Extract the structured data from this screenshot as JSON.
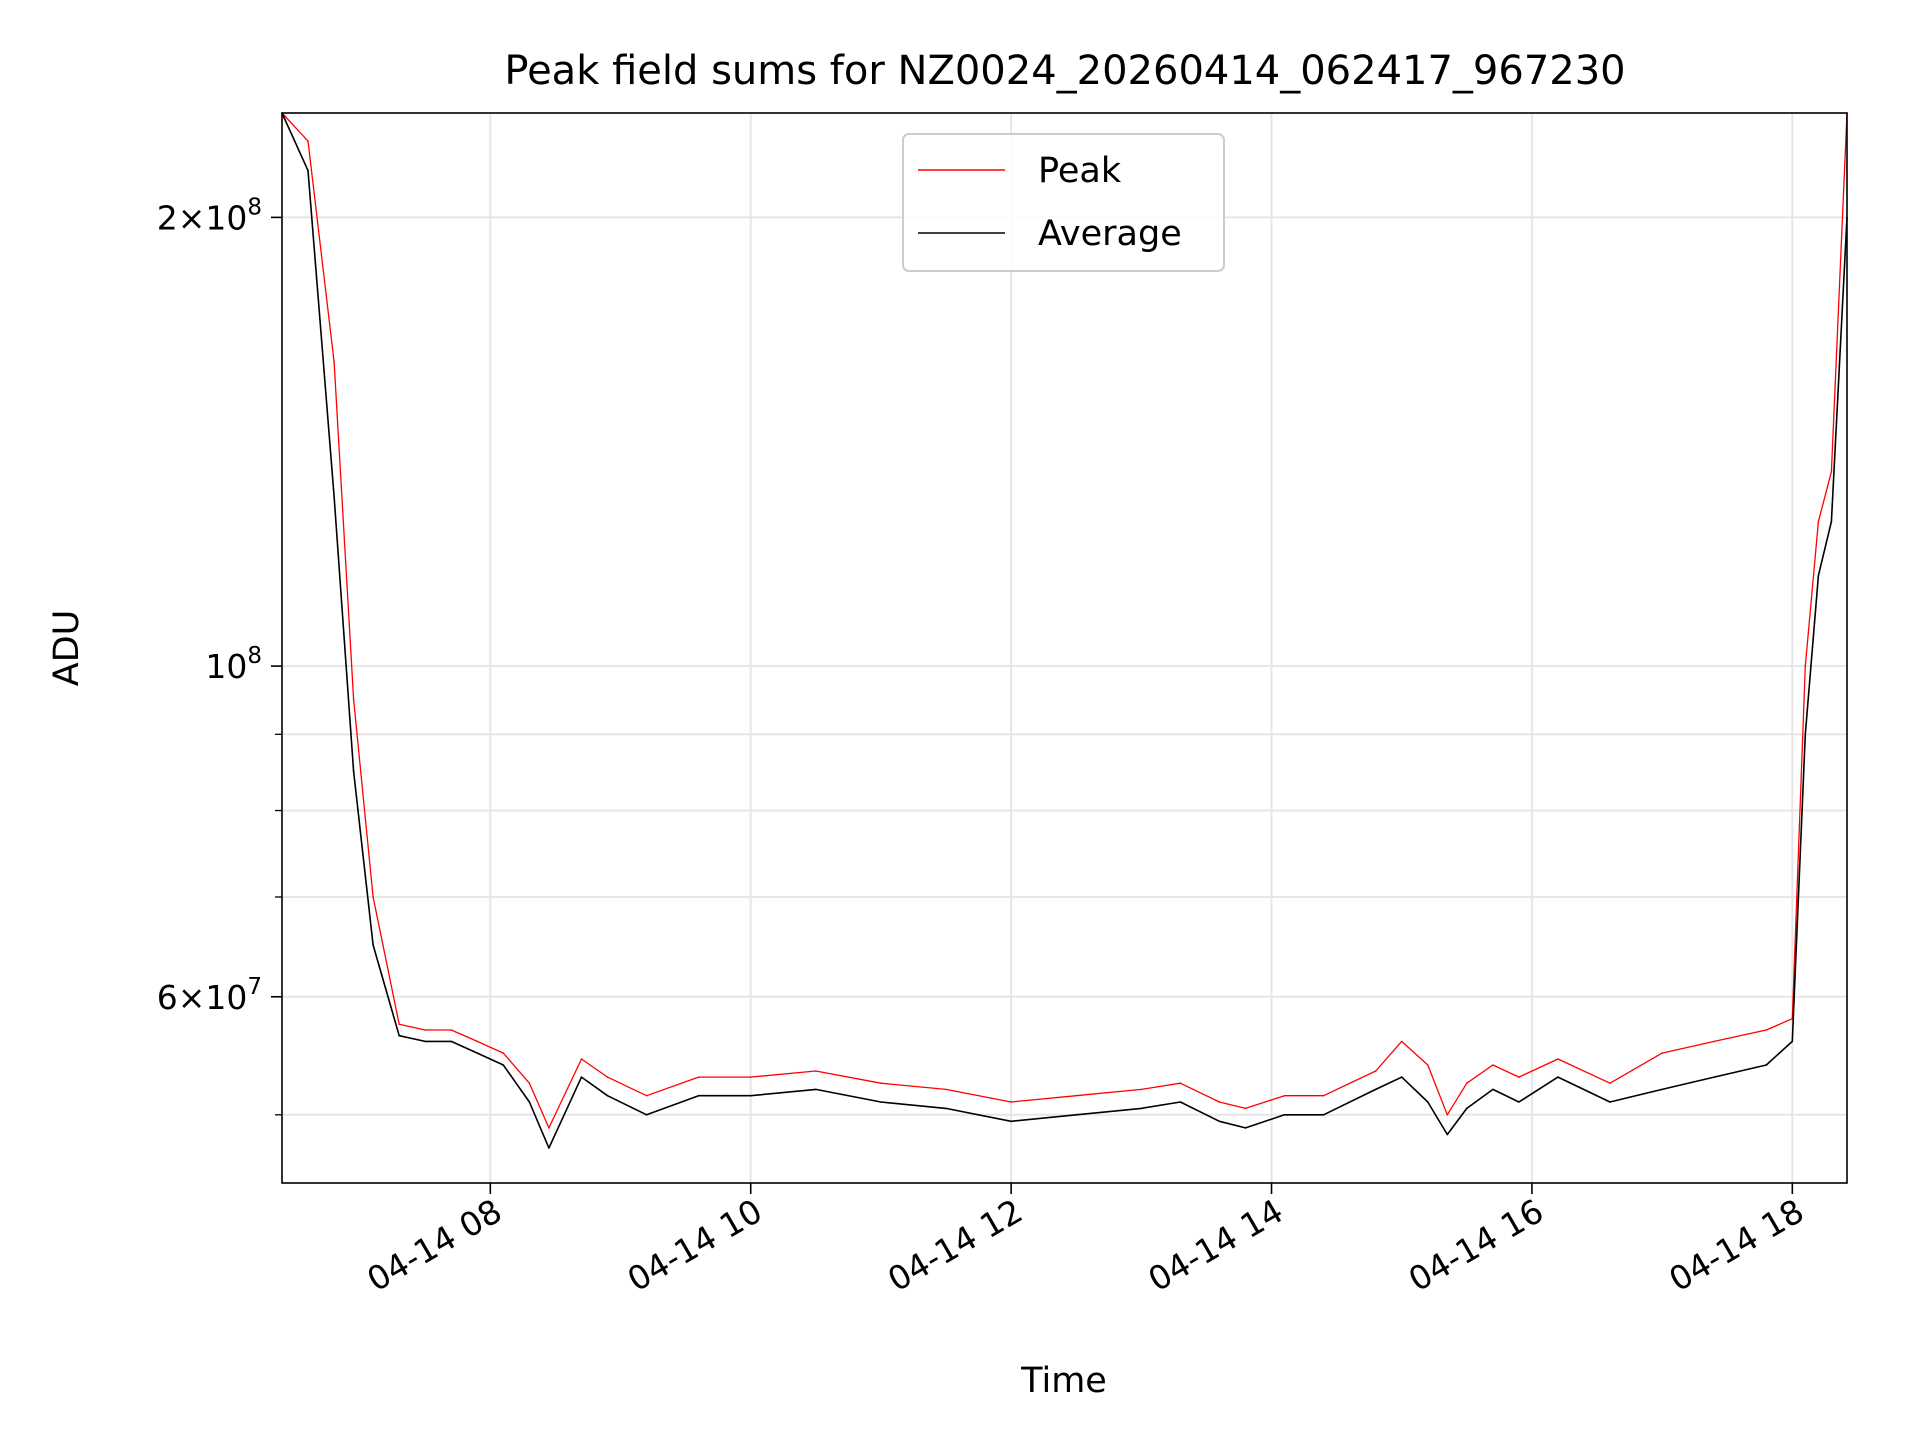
{
  "chart_data": {
    "type": "line",
    "title": "Peak field sums for NZ0024_20260414_062417_967230",
    "xlabel": "Time",
    "ylabel": "ADU",
    "yscale": "log",
    "xlim_hours": [
      6.4,
      18.42
    ],
    "ylim": [
      45000000,
      235000000
    ],
    "x_ticks": [
      {
        "hour": 8,
        "label": "04-14 08"
      },
      {
        "hour": 10,
        "label": "04-14 10"
      },
      {
        "hour": 12,
        "label": "04-14 12"
      },
      {
        "hour": 14,
        "label": "04-14 14"
      },
      {
        "hour": 16,
        "label": "04-14 16"
      },
      {
        "hour": 18,
        "label": "04-14 18"
      }
    ],
    "y_major_ticks": [
      {
        "value": 60000000,
        "base": "6",
        "exp": "7"
      },
      {
        "value": 100000000,
        "base": "",
        "exp": "8"
      },
      {
        "value": 200000000,
        "base": "2",
        "exp": "8"
      }
    ],
    "y_minor_ticks": [
      50000000,
      70000000,
      80000000,
      90000000
    ],
    "legend": {
      "location": "upper center",
      "entries": [
        "Peak",
        "Average"
      ]
    },
    "colors": {
      "Peak": "#ff0000",
      "Average": "#000000"
    },
    "series": [
      {
        "name": "Average",
        "hours": [
          6.4,
          6.6,
          6.8,
          6.95,
          7.1,
          7.3,
          7.5,
          7.7,
          7.9,
          8.1,
          8.3,
          8.45,
          8.7,
          8.9,
          9.2,
          9.6,
          10.0,
          10.5,
          11.0,
          11.5,
          12.0,
          12.5,
          13.0,
          13.3,
          13.6,
          13.8,
          14.1,
          14.4,
          14.8,
          15.0,
          15.2,
          15.35,
          15.5,
          15.7,
          15.9,
          16.2,
          16.6,
          17.0,
          17.4,
          17.8,
          18.0,
          18.1,
          18.2,
          18.3,
          18.42
        ],
        "values": [
          235000000,
          215000000,
          130000000,
          85000000,
          65000000,
          56500000,
          56000000,
          56000000,
          55000000,
          54000000,
          51000000,
          47500000,
          53000000,
          51500000,
          50000000,
          51500000,
          51500000,
          52000000,
          51000000,
          50500000,
          49500000,
          50000000,
          50500000,
          51000000,
          49500000,
          49000000,
          50000000,
          50000000,
          52000000,
          53000000,
          51000000,
          48500000,
          50500000,
          52000000,
          51000000,
          53000000,
          51000000,
          52000000,
          53000000,
          54000000,
          56000000,
          90000000,
          115000000,
          125000000,
          200000000
        ]
      },
      {
        "name": "Peak",
        "hours": [
          6.4,
          6.6,
          6.8,
          6.95,
          7.1,
          7.3,
          7.5,
          7.7,
          7.9,
          8.1,
          8.3,
          8.45,
          8.7,
          8.9,
          9.2,
          9.6,
          10.0,
          10.5,
          11.0,
          11.5,
          12.0,
          12.5,
          13.0,
          13.3,
          13.6,
          13.8,
          14.1,
          14.4,
          14.8,
          15.0,
          15.2,
          15.35,
          15.5,
          15.7,
          15.9,
          16.2,
          16.6,
          17.0,
          17.4,
          17.8,
          18.0,
          18.1,
          18.2,
          18.3,
          18.42
        ],
        "values": [
          235000000,
          225000000,
          160000000,
          95000000,
          70000000,
          57500000,
          57000000,
          57000000,
          56000000,
          55000000,
          52500000,
          49000000,
          54500000,
          53000000,
          51500000,
          53000000,
          53000000,
          53500000,
          52500000,
          52000000,
          51000000,
          51500000,
          52000000,
          52500000,
          51000000,
          50500000,
          51500000,
          51500000,
          53500000,
          56000000,
          54000000,
          50000000,
          52500000,
          54000000,
          53000000,
          54500000,
          52500000,
          55000000,
          56000000,
          57000000,
          58000000,
          100000000,
          125000000,
          135000000,
          235000000
        ]
      }
    ]
  }
}
